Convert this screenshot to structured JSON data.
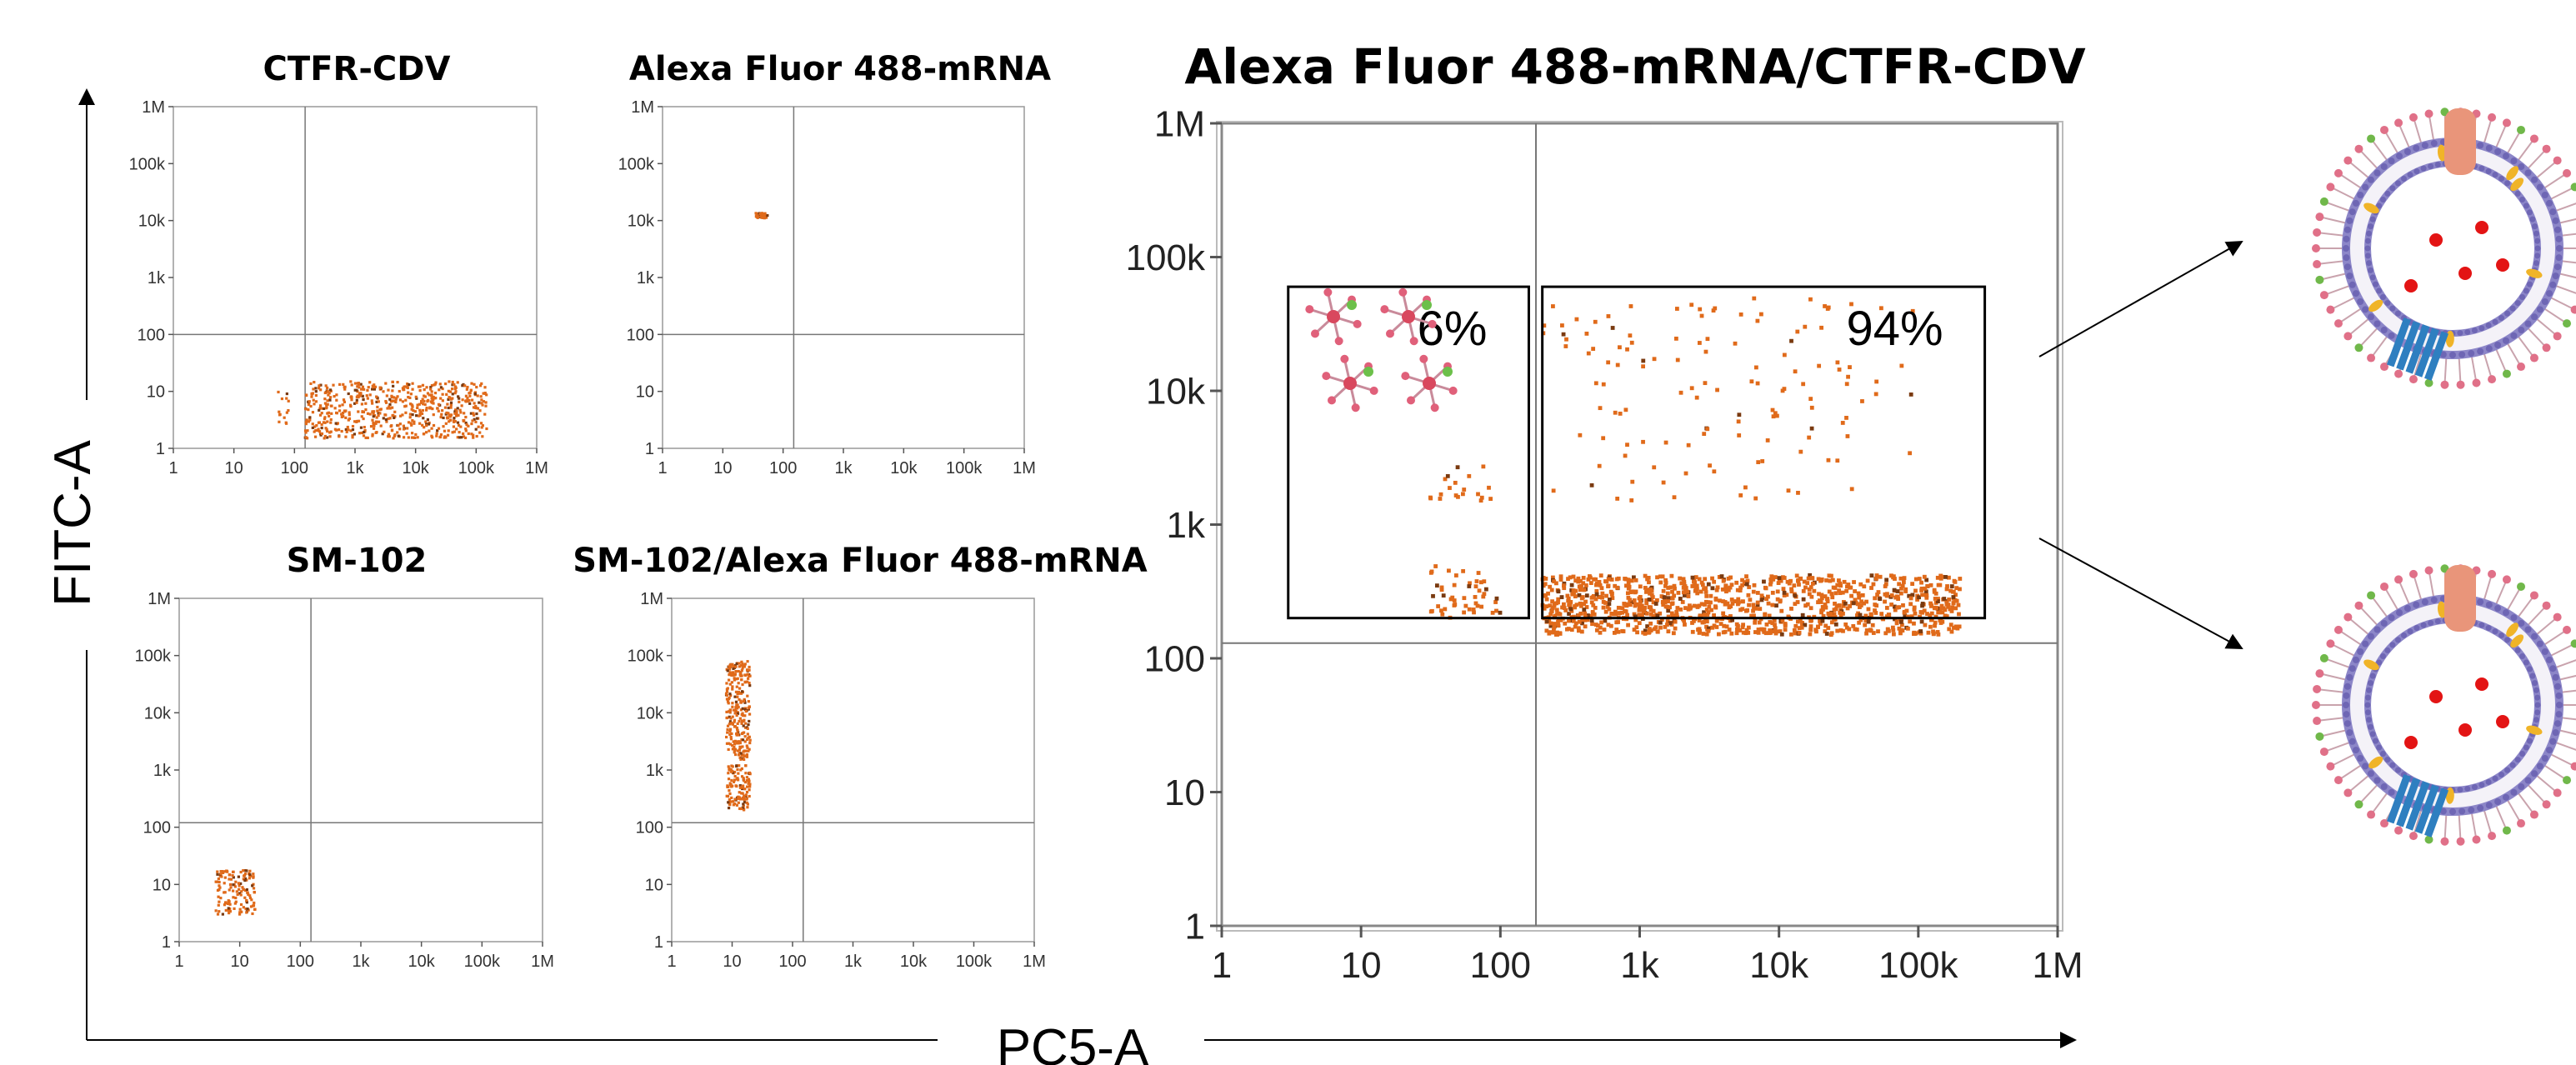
{
  "figure": {
    "y_axis_label": "FITC-A",
    "x_axis_label": "PC5-A"
  },
  "chart_data": [
    {
      "type": "scatter",
      "title": "CTFR-CDV",
      "xscale": "log",
      "yscale": "log",
      "xlim": [
        1,
        1000000
      ],
      "ylim": [
        1,
        1000000
      ],
      "x_ticks": [
        "1",
        "10",
        "100",
        "1k",
        "10k",
        "100k",
        "1M"
      ],
      "y_ticks": [
        "1",
        "10",
        "100",
        "1k",
        "10k",
        "100k",
        "1M"
      ],
      "gate": {
        "x": 150,
        "y": 100
      },
      "clusters": [
        {
          "x_range": [
            50,
            80
          ],
          "y_range": [
            2,
            12
          ],
          "count": 14
        },
        {
          "x_range": [
            150,
            150000
          ],
          "y_range": [
            1.5,
            15
          ],
          "count": 650
        }
      ],
      "point_color": "#e06a1a"
    },
    {
      "type": "scatter",
      "title": "Alexa Fluor 488-mRNA",
      "xscale": "log",
      "yscale": "log",
      "xlim": [
        1,
        1000000
      ],
      "ylim": [
        1,
        1000000
      ],
      "x_ticks": [
        "1",
        "10",
        "100",
        "1k",
        "10k",
        "100k",
        "1M"
      ],
      "y_ticks": [
        "1",
        "10",
        "100",
        "1k",
        "10k",
        "100k",
        "1M"
      ],
      "gate": {
        "x": 150,
        "y": 100
      },
      "clusters": [
        {
          "x_range": [
            35,
            55
          ],
          "y_range": [
            11000,
            13500
          ],
          "count": 40
        }
      ],
      "point_color": "#e06a1a"
    },
    {
      "type": "scatter",
      "title": "SM-102",
      "xscale": "log",
      "yscale": "log",
      "xlim": [
        1,
        1000000
      ],
      "ylim": [
        1,
        1000000
      ],
      "x_ticks": [
        "1",
        "10",
        "100",
        "1k",
        "10k",
        "100k",
        "1M"
      ],
      "y_ticks": [
        "1",
        "10",
        "100",
        "1k",
        "10k",
        "100k",
        "1M"
      ],
      "gate": {
        "x": 150,
        "y": 120
      },
      "clusters": [
        {
          "x_range": [
            4,
            18
          ],
          "y_range": [
            3,
            18
          ],
          "count": 140
        }
      ],
      "point_color": "#e06a1a"
    },
    {
      "type": "scatter",
      "title": "SM-102/Alexa Fluor 488-mRNA",
      "xscale": "log",
      "yscale": "log",
      "xlim": [
        1,
        1000000
      ],
      "ylim": [
        1,
        1000000
      ],
      "x_ticks": [
        "1",
        "10",
        "100",
        "1k",
        "10k",
        "100k",
        "1M"
      ],
      "y_ticks": [
        "1",
        "10",
        "100",
        "1k",
        "10k",
        "100k",
        "1M"
      ],
      "gate": {
        "x": 150,
        "y": 120
      },
      "clusters": [
        {
          "x_range": [
            8,
            20
          ],
          "y_range": [
            1500,
            80000
          ],
          "count": 260
        },
        {
          "x_range": [
            8,
            20
          ],
          "y_range": [
            200,
            1200
          ],
          "count": 120
        }
      ],
      "point_color": "#e06a1a"
    },
    {
      "type": "scatter",
      "title": "Alexa Fluor 488-mRNA/CTFR-CDV",
      "xscale": "log",
      "yscale": "log",
      "xlim": [
        1,
        1000000
      ],
      "ylim": [
        1,
        1000000
      ],
      "x_ticks": [
        "1",
        "10",
        "100",
        "1k",
        "10k",
        "100k",
        "1M"
      ],
      "y_ticks": [
        "1",
        "10",
        "100",
        "1k",
        "10k",
        "100k",
        "1M"
      ],
      "gate": {
        "x": 180,
        "y": 130
      },
      "regions": [
        {
          "label": "6%",
          "x_range": [
            3,
            160
          ],
          "y_range": [
            200,
            60000
          ]
        },
        {
          "label": "94%",
          "x_range": [
            200,
            300000
          ],
          "y_range": [
            200,
            60000
          ]
        }
      ],
      "clusters": [
        {
          "x_range": [
            30,
            90
          ],
          "y_range": [
            1500,
            2800
          ],
          "count": 20
        },
        {
          "x_range": [
            30,
            100
          ],
          "y_range": [
            200,
            500
          ],
          "count": 50
        },
        {
          "x_range": [
            200,
            200000
          ],
          "y_range": [
            150,
            420
          ],
          "count": 1100
        },
        {
          "x_range": [
            200,
            100000
          ],
          "y_range": [
            1500,
            50000
          ],
          "count": 130
        }
      ],
      "point_color": "#e06a1a"
    }
  ],
  "annotations": {
    "arrow_color": "#000000"
  }
}
